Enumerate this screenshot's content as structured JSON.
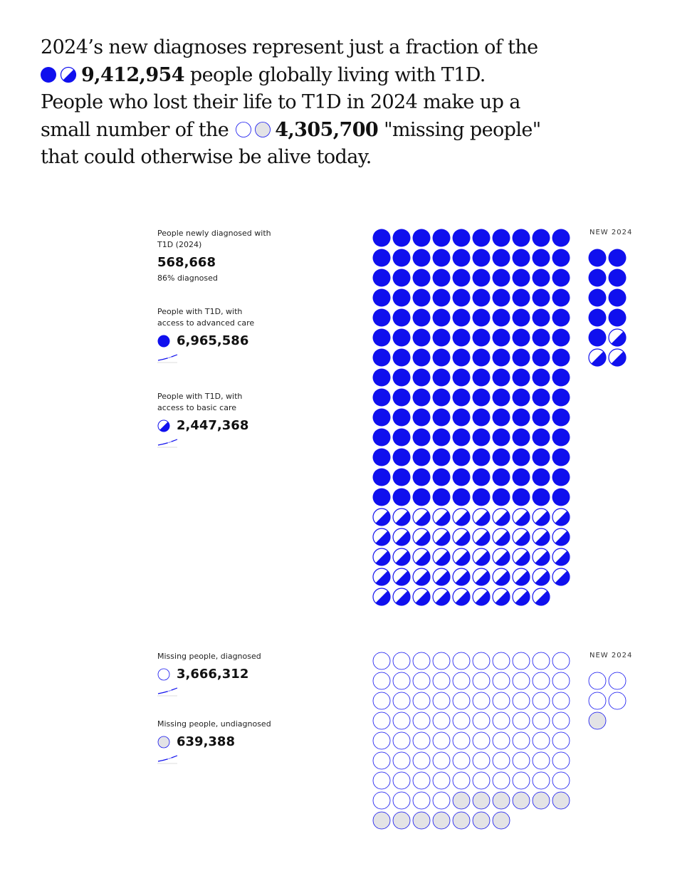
{
  "intro": {
    "part1": "2024’s new diagnoses represent just a fraction of the",
    "living_total": "9,412,954",
    "part2": "people globally living with T1D. People who lost their life to T1D in 2024 make up a small number of the",
    "missing_total": "4,305,700",
    "part3": "\"missing people\" that could otherwise be alive today."
  },
  "colors": {
    "accent": "#1010ee",
    "grey_fill": "#e3e3e6",
    "white": "#ffffff"
  },
  "living_section": {
    "newly_diagnosed_label": "People newly diagnosed with T1D (2024)",
    "newly_diagnosed_value": "568,668",
    "diagnosed_pct_text": "86% diagnosed",
    "advanced_label": "People with T1D, with access to advanced care",
    "advanced_value": "6,965,586",
    "basic_label": "People with T1D, with access to basic care",
    "basic_value": "2,447,368",
    "new_label": "NEW 2024"
  },
  "missing_section": {
    "diagnosed_label": "Missing people, diagnosed",
    "diagnosed_value": "3,666,312",
    "undiagnosed_label": "Missing people, undiagnosed",
    "undiagnosed_value": "639,388",
    "new_label": "NEW 2024"
  },
  "chart_data": [
    {
      "type": "waffle",
      "name_hidden": "living",
      "columns": 10,
      "categories": [
        "People with T1D, with access to advanced care",
        "People with T1D, with access to basic care"
      ],
      "icons": [
        "full",
        "half"
      ],
      "values": [
        6965586,
        2447368
      ],
      "dot_counts": [
        140,
        49
      ],
      "new_2024": {
        "columns": 2,
        "icons": [
          "full",
          "half"
        ],
        "dot_counts": [
          9,
          3
        ]
      }
    },
    {
      "type": "waffle",
      "columns": 10,
      "categories": [
        "Missing people, diagnosed",
        "Missing people, undiagnosed"
      ],
      "icons": [
        "outline",
        "grey"
      ],
      "values": [
        3666312,
        639388
      ],
      "dot_counts": [
        74,
        13
      ],
      "new_2024": {
        "columns": 2,
        "icons": [
          "outline",
          "grey"
        ],
        "dot_counts": [
          4,
          1
        ]
      }
    }
  ]
}
